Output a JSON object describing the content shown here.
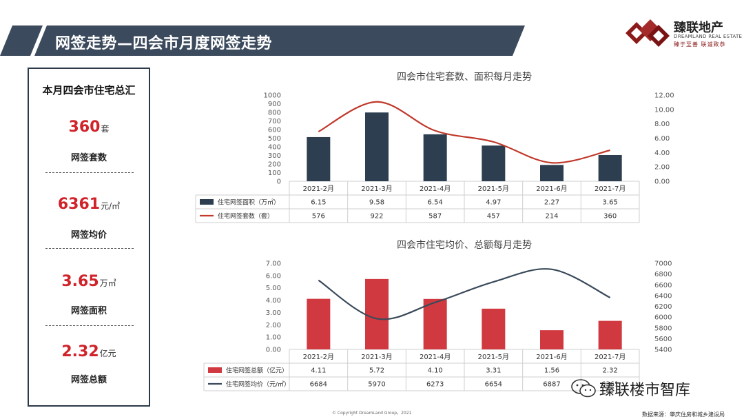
{
  "header": {
    "title": "网签走势—四会市月度网签走势"
  },
  "logo": {
    "name": "臻联地产",
    "en": "DREAMLAND REAL ESTATE",
    "slogan": "臻于至善 联诚致恭"
  },
  "summary": {
    "title": "本月四会市住宅总汇",
    "items": [
      {
        "value": "360",
        "unit": "套",
        "label": "网签套数"
      },
      {
        "value": "6361",
        "unit": "元/㎡",
        "label": "网签均价"
      },
      {
        "value": "3.65",
        "unit": "万㎡",
        "label": "网签面积"
      },
      {
        "value": "2.32",
        "unit": "亿元",
        "label": "网签总额"
      }
    ]
  },
  "colors": {
    "navy": "#2d3e50",
    "red": "#d0393f",
    "line_red": "#c0392b",
    "kpi_red": "#d0232a"
  },
  "chart_data": [
    {
      "type": "bar",
      "title": "四会市住宅套数、面积每月走势",
      "categories": [
        "2021-2月",
        "2021-3月",
        "2021-4月",
        "2021-5月",
        "2021-6月",
        "2021-7月"
      ],
      "series": [
        {
          "name": "住宅网签面积（万㎡）",
          "kind": "bar",
          "axis": "right",
          "color": "#2d3e50",
          "values": [
            6.15,
            9.58,
            6.54,
            4.97,
            2.27,
            3.65
          ],
          "labels": [
            "6.15",
            "9.58",
            "6.54",
            "4.97",
            "2.27",
            "3.65"
          ]
        },
        {
          "name": "住宅网签套数（套）",
          "kind": "line",
          "axis": "left",
          "color": "#c0392b",
          "values": [
            576,
            922,
            587,
            457,
            214,
            360
          ],
          "labels": [
            "576",
            "922",
            "587",
            "457",
            "214",
            "360"
          ]
        }
      ],
      "y_left": {
        "min": 0,
        "max": 1000,
        "ticks": [
          "0",
          "100",
          "200",
          "300",
          "400",
          "500",
          "600",
          "700",
          "800",
          "900",
          "1000"
        ]
      },
      "y_right": {
        "min": 0,
        "max": 12,
        "ticks": [
          "0.00",
          "2.00",
          "4.00",
          "6.00",
          "8.00",
          "10.00",
          "12.00"
        ]
      },
      "grid": false,
      "legend": "table-bottom"
    },
    {
      "type": "bar",
      "title": "四会市住宅均价、总额每月走势",
      "categories": [
        "2021-2月",
        "2021-3月",
        "2021-4月",
        "2021-5月",
        "2021-6月",
        "2021-7月"
      ],
      "series": [
        {
          "name": "住宅网签总额（亿元）",
          "kind": "bar",
          "axis": "left",
          "color": "#d0393f",
          "values": [
            4.11,
            5.72,
            4.1,
            3.31,
            1.56,
            2.32
          ],
          "labels": [
            "4.11",
            "5.72",
            "4.10",
            "3.31",
            "1.56",
            "2.32"
          ]
        },
        {
          "name": "住宅网签均价（元/㎡）",
          "kind": "line",
          "axis": "right",
          "color": "#3a4a5a",
          "values": [
            6684,
            5970,
            6273,
            6654,
            6887,
            6361
          ],
          "labels": [
            "6684",
            "5970",
            "6273",
            "6654",
            "6887",
            "6361"
          ]
        }
      ],
      "y_left": {
        "min": 0,
        "max": 7,
        "ticks": [
          "0.00",
          "1.00",
          "2.00",
          "3.00",
          "4.00",
          "5.00",
          "6.00",
          "7.00"
        ]
      },
      "y_right": {
        "min": 5400,
        "max": 7000,
        "ticks": [
          "5400",
          "5600",
          "5800",
          "6000",
          "6200",
          "6400",
          "6600",
          "6800",
          "7000"
        ]
      },
      "grid": false,
      "legend": "table-bottom"
    }
  ],
  "footer": {
    "copyright": "© Copyright  DreamLand  Group，2021",
    "source": "数据来源：肇庆住房和城乡建设局",
    "wechat": "臻联楼市智库"
  }
}
